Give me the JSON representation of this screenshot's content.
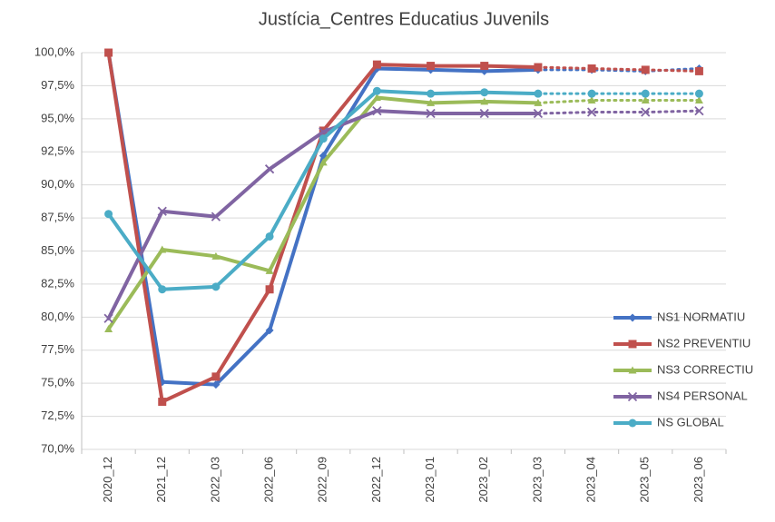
{
  "chart_data": {
    "type": "line",
    "title": "Justícia_Centres Educatius Juvenils",
    "categories": [
      "2020_12",
      "2021_12",
      "2022_03",
      "2022_06",
      "2022_09",
      "2022_12",
      "2023_01",
      "2023_02",
      "2023_03",
      "2023_04",
      "2023_05",
      "2023_06"
    ],
    "dotted_from": 8,
    "series": [
      {
        "name": "NS1 NORMATIU",
        "color": "#4472c4",
        "marker": "diamond",
        "values": [
          100,
          75.1,
          74.9,
          79.0,
          92.2,
          98.8,
          98.7,
          98.6,
          98.7,
          98.7,
          98.6,
          98.8
        ]
      },
      {
        "name": "NS2 PREVENTIU",
        "color": "#c0504d",
        "marker": "square",
        "values": [
          100,
          73.6,
          75.5,
          82.1,
          94.1,
          99.1,
          99.0,
          99.0,
          98.9,
          98.8,
          98.7,
          98.6
        ]
      },
      {
        "name": "NS3 CORRECTIU",
        "color": "#9bbb59",
        "marker": "triangle",
        "values": [
          79.1,
          85.1,
          84.6,
          83.5,
          91.7,
          96.6,
          96.2,
          96.3,
          96.2,
          96.4,
          96.4,
          96.4
        ]
      },
      {
        "name": "NS4 PERSONAL",
        "color": "#8064a2",
        "marker": "x",
        "values": [
          79.9,
          88.0,
          87.6,
          91.2,
          94.0,
          95.6,
          95.4,
          95.4,
          95.4,
          95.5,
          95.5,
          95.6
        ]
      },
      {
        "name": "NS GLOBAL",
        "color": "#4bacc6",
        "marker": "circle",
        "values": [
          87.8,
          82.1,
          82.3,
          86.1,
          93.5,
          97.1,
          96.9,
          97.0,
          96.9,
          96.9,
          96.9,
          96.9
        ]
      }
    ],
    "ylim": [
      70,
      100
    ],
    "yticks": [
      {
        "value": 70,
        "label": "70,0%"
      },
      {
        "value": 72.5,
        "label": "72,5%"
      },
      {
        "value": 75,
        "label": "75,0%"
      },
      {
        "value": 77.5,
        "label": "77,5%"
      },
      {
        "value": 80,
        "label": "80,0%"
      },
      {
        "value": 82.5,
        "label": "82,5%"
      },
      {
        "value": 85,
        "label": "85,0%"
      },
      {
        "value": 87.5,
        "label": "87,5%"
      },
      {
        "value": 90,
        "label": "90,0%"
      },
      {
        "value": 92.5,
        "label": "92,5%"
      },
      {
        "value": 95,
        "label": "95,0%"
      },
      {
        "value": 97.5,
        "label": "97,5%"
      },
      {
        "value": 100,
        "label": "100,0%"
      }
    ],
    "grid": true,
    "legend": "bottom-right"
  }
}
